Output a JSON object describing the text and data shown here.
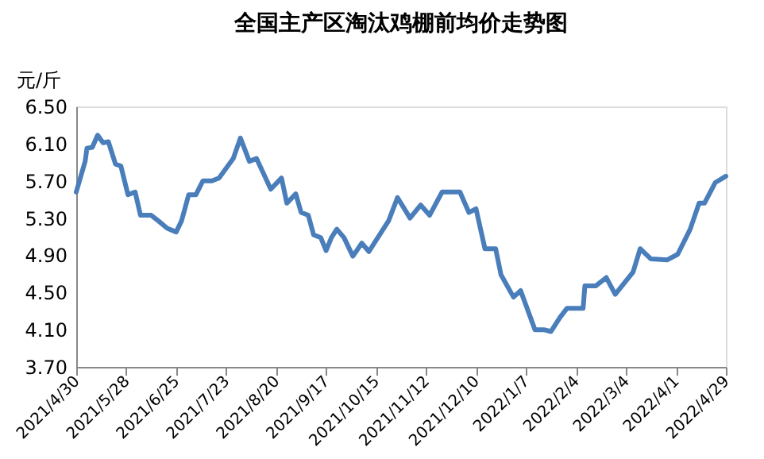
{
  "chart_data": {
    "type": "line",
    "title": "全国主产区淘汰鸡棚前均价走势图",
    "ylabel": "元/斤",
    "x": [
      "2021-04-30",
      "2021-05-05",
      "2021-05-06",
      "2021-05-09",
      "2021-05-12",
      "2021-05-15",
      "2021-05-18",
      "2021-05-22",
      "2021-05-25",
      "2021-05-29",
      "2021-06-02",
      "2021-06-05",
      "2021-06-11",
      "2021-06-15",
      "2021-06-20",
      "2021-06-25",
      "2021-06-28",
      "2021-07-02",
      "2021-07-06",
      "2021-07-10",
      "2021-07-15",
      "2021-07-19",
      "2021-07-27",
      "2021-07-31",
      "2021-08-05",
      "2021-08-09",
      "2021-08-17",
      "2021-08-23",
      "2021-08-26",
      "2021-08-31",
      "2021-09-03",
      "2021-09-07",
      "2021-09-10",
      "2021-09-14",
      "2021-09-17",
      "2021-09-20",
      "2021-09-23",
      "2021-09-27",
      "2021-10-02",
      "2021-10-07",
      "2021-10-11",
      "2021-10-15",
      "2021-10-22",
      "2021-10-27",
      "2021-11-03",
      "2021-11-09",
      "2021-11-14",
      "2021-11-21",
      "2021-12-01",
      "2021-12-06",
      "2021-12-10",
      "2021-12-15",
      "2021-12-21",
      "2021-12-24",
      "2021-12-31",
      "2022-01-04",
      "2022-01-12",
      "2022-01-17",
      "2022-01-21",
      "2022-01-26",
      "2022-01-30",
      "2022-02-08",
      "2022-02-09",
      "2022-02-15",
      "2022-02-21",
      "2022-02-26",
      "2022-03-03",
      "2022-03-08",
      "2022-03-12",
      "2022-03-18",
      "2022-03-27",
      "2022-04-02",
      "2022-04-09",
      "2022-04-14",
      "2022-04-17",
      "2022-04-23",
      "2022-04-29"
    ],
    "series": [
      {
        "color": "#4a7ebb",
        "values": [
          5.58,
          5.91,
          6.05,
          6.06,
          6.19,
          6.11,
          6.12,
          5.88,
          5.86,
          5.55,
          5.58,
          5.33,
          5.33,
          5.27,
          5.19,
          5.15,
          5.27,
          5.55,
          5.55,
          5.7,
          5.7,
          5.73,
          5.94,
          6.16,
          5.91,
          5.94,
          5.61,
          5.73,
          5.46,
          5.56,
          5.36,
          5.33,
          5.12,
          5.09,
          4.95,
          5.09,
          5.18,
          5.09,
          4.89,
          5.03,
          4.94,
          5.06,
          5.27,
          5.52,
          5.3,
          5.44,
          5.33,
          5.58,
          5.58,
          5.36,
          5.4,
          4.97,
          4.97,
          4.69,
          4.45,
          4.52,
          4.1,
          4.1,
          4.08,
          4.23,
          4.33,
          4.33,
          4.57,
          4.57,
          4.66,
          4.48,
          4.6,
          4.72,
          4.97,
          4.86,
          4.85,
          4.91,
          5.18,
          5.46,
          5.46,
          5.68,
          5.75
        ]
      }
    ],
    "xlim": [
      "2021-04-30",
      "2022-04-29"
    ],
    "xticks": [
      {
        "value": "2021-04-30",
        "label": "2021/4/30"
      },
      {
        "value": "2021-05-28",
        "label": "2021/5/28"
      },
      {
        "value": "2021-06-25",
        "label": "2021/6/25"
      },
      {
        "value": "2021-07-23",
        "label": "2021/7/23"
      },
      {
        "value": "2021-08-20",
        "label": "2021/8/20"
      },
      {
        "value": "2021-09-17",
        "label": "2021/9/17"
      },
      {
        "value": "2021-10-15",
        "label": "2021/10/15"
      },
      {
        "value": "2021-11-12",
        "label": "2021/11/12"
      },
      {
        "value": "2021-12-10",
        "label": "2021/12/10"
      },
      {
        "value": "2022-01-07",
        "label": "2022/1/7"
      },
      {
        "value": "2022-02-04",
        "label": "2022/2/4"
      },
      {
        "value": "2022-03-04",
        "label": "2022/3/4"
      },
      {
        "value": "2022-04-01",
        "label": "2022/4/1"
      },
      {
        "value": "2022-04-29",
        "label": "2022/4/29"
      }
    ],
    "ylim": [
      3.7,
      6.5
    ],
    "yticks": [
      {
        "value": 3.7,
        "label": "3.70"
      },
      {
        "value": 4.1,
        "label": "4.10"
      },
      {
        "value": 4.5,
        "label": "4.50"
      },
      {
        "value": 4.9,
        "label": "4.90"
      },
      {
        "value": 5.3,
        "label": "5.30"
      },
      {
        "value": 5.7,
        "label": "5.70"
      },
      {
        "value": 6.1,
        "label": "6.10"
      },
      {
        "value": 6.5,
        "label": "6.50"
      }
    ],
    "grid": false,
    "marker": "none",
    "line_style": "solid"
  }
}
